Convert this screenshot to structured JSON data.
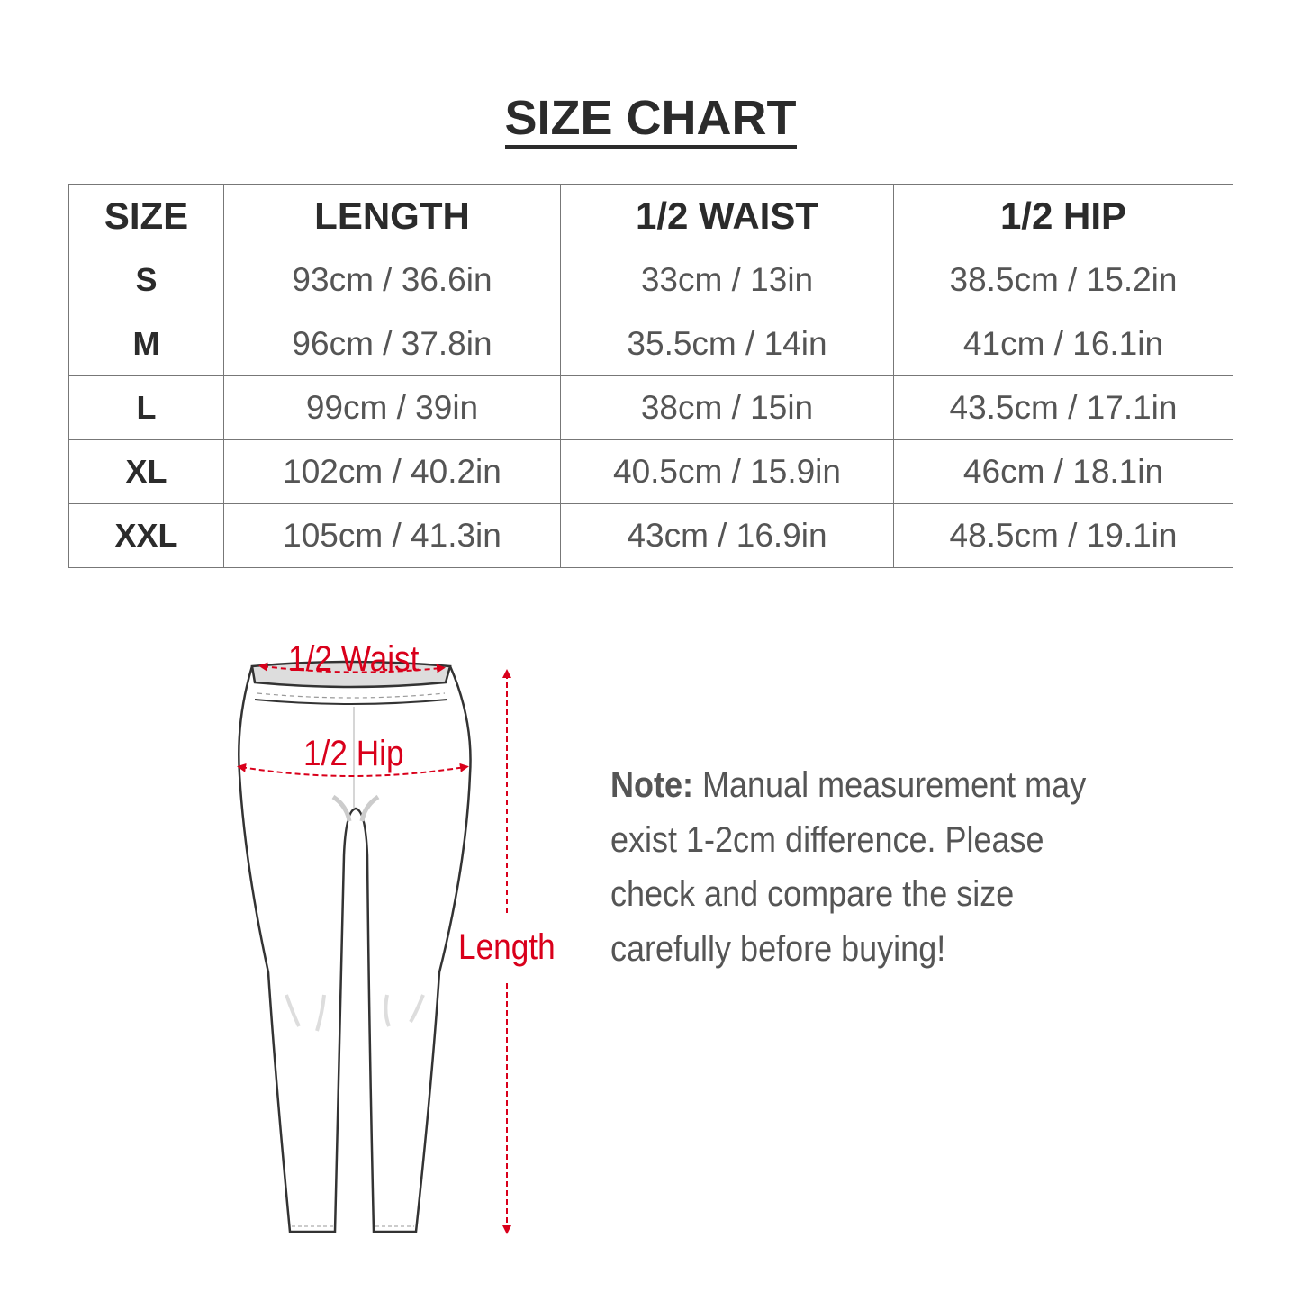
{
  "title": "SIZE CHART",
  "table": {
    "headers": [
      "SIZE",
      "LENGTH",
      "1/2 WAIST",
      "1/2 HIP"
    ],
    "rows": [
      [
        "S",
        "93cm / 36.6in",
        "33cm / 13in",
        "38.5cm / 15.2in"
      ],
      [
        "M",
        "96cm / 37.8in",
        "35.5cm / 14in",
        "41cm / 16.1in"
      ],
      [
        "L",
        "99cm / 39in",
        "38cm / 15in",
        "43.5cm / 17.1in"
      ],
      [
        "XL",
        "102cm / 40.2in",
        "40.5cm / 15.9in",
        "46cm / 18.1in"
      ],
      [
        "XXL",
        "105cm / 41.3in",
        "43cm / 16.9in",
        "48.5cm / 19.1in"
      ]
    ]
  },
  "diagram": {
    "waist_label": "1/2 Waist",
    "hip_label": "1/2 Hip",
    "length_label": "Length",
    "accent_color": "#d9001b"
  },
  "note": {
    "label": "Note:",
    "text": "Manual measurement may exist 1-2cm difference. Please check and compare the size carefully before buying!"
  }
}
